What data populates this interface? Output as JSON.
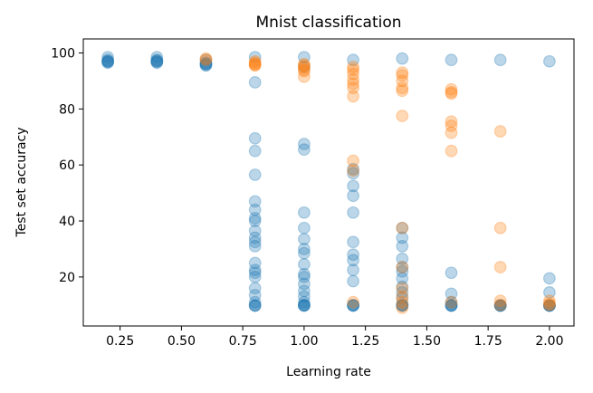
{
  "chart_data": {
    "type": "scatter",
    "title": "Mnist classification",
    "xlabel": "Learning rate",
    "ylabel": "Test set accuracy",
    "xlim": [
      0.1,
      2.1
    ],
    "ylim": [
      2.5,
      105
    ],
    "xticks": [
      0.25,
      0.5,
      0.75,
      1.0,
      1.25,
      1.5,
      1.75,
      2.0
    ],
    "xtick_labels": [
      "0.25",
      "0.50",
      "0.75",
      "1.00",
      "1.25",
      "1.50",
      "1.75",
      "2.00"
    ],
    "yticks": [
      20,
      40,
      60,
      80,
      100
    ],
    "ytick_labels": [
      "20",
      "40",
      "60",
      "80",
      "100"
    ],
    "grid": false,
    "legend": "none",
    "marker_alpha": 0.3,
    "series": [
      {
        "color": "#1f77b4",
        "points": [
          [
            0.2,
            98.5
          ],
          [
            0.2,
            97.5
          ],
          [
            0.2,
            97
          ],
          [
            0.2,
            96.5
          ],
          [
            0.2,
            97
          ],
          [
            0.2,
            96.8
          ],
          [
            0.4,
            98.5
          ],
          [
            0.4,
            97.5
          ],
          [
            0.4,
            97
          ],
          [
            0.4,
            96.5
          ],
          [
            0.4,
            97.2
          ],
          [
            0.4,
            96.8
          ],
          [
            0.6,
            97.5
          ],
          [
            0.6,
            96.5
          ],
          [
            0.6,
            95.5
          ],
          [
            0.6,
            96
          ],
          [
            0.6,
            95.8
          ],
          [
            0.6,
            96.2
          ],
          [
            0.8,
            98.5
          ],
          [
            0.8,
            89.5
          ],
          [
            0.8,
            69.5
          ],
          [
            0.8,
            65
          ],
          [
            0.8,
            56.5
          ],
          [
            0.8,
            47
          ],
          [
            0.8,
            44
          ],
          [
            0.8,
            41
          ],
          [
            0.8,
            40
          ],
          [
            0.8,
            36.5
          ],
          [
            0.8,
            34
          ],
          [
            0.8,
            32.5
          ],
          [
            0.8,
            31
          ],
          [
            0.8,
            25
          ],
          [
            0.8,
            22.5
          ],
          [
            0.8,
            21.5
          ],
          [
            0.8,
            20
          ],
          [
            0.8,
            16
          ],
          [
            0.8,
            13.5
          ],
          [
            0.8,
            11
          ],
          [
            0.8,
            9.8
          ],
          [
            0.8,
            9.8
          ],
          [
            0.8,
            9.8
          ],
          [
            1.0,
            98.5
          ],
          [
            1.0,
            95
          ],
          [
            1.0,
            67.5
          ],
          [
            1.0,
            65.5
          ],
          [
            1.0,
            43
          ],
          [
            1.0,
            37.5
          ],
          [
            1.0,
            33.5
          ],
          [
            1.0,
            30
          ],
          [
            1.0,
            28.5
          ],
          [
            1.0,
            24.5
          ],
          [
            1.0,
            21
          ],
          [
            1.0,
            20
          ],
          [
            1.0,
            17.5
          ],
          [
            1.0,
            15
          ],
          [
            1.0,
            13
          ],
          [
            1.0,
            11
          ],
          [
            1.0,
            10
          ],
          [
            1.0,
            9.8
          ],
          [
            1.0,
            9.8
          ],
          [
            1.0,
            9.8
          ],
          [
            1.2,
            97.5
          ],
          [
            1.2,
            58.5
          ],
          [
            1.2,
            57
          ],
          [
            1.2,
            52.5
          ],
          [
            1.2,
            49
          ],
          [
            1.2,
            43
          ],
          [
            1.2,
            32.5
          ],
          [
            1.2,
            28
          ],
          [
            1.2,
            26
          ],
          [
            1.2,
            22.5
          ],
          [
            1.2,
            18.5
          ],
          [
            1.2,
            10
          ],
          [
            1.2,
            9.8
          ],
          [
            1.2,
            9.8
          ],
          [
            1.2,
            9.8
          ],
          [
            1.4,
            98
          ],
          [
            1.4,
            37.5
          ],
          [
            1.4,
            34
          ],
          [
            1.4,
            31
          ],
          [
            1.4,
            26.5
          ],
          [
            1.4,
            23.5
          ],
          [
            1.4,
            22
          ],
          [
            1.4,
            19.5
          ],
          [
            1.4,
            16.5
          ],
          [
            1.4,
            14.5
          ],
          [
            1.4,
            12.5
          ],
          [
            1.4,
            10
          ],
          [
            1.4,
            9.8
          ],
          [
            1.4,
            9.8
          ],
          [
            1.4,
            9.8
          ],
          [
            1.6,
            97.5
          ],
          [
            1.6,
            21.5
          ],
          [
            1.6,
            14
          ],
          [
            1.6,
            11
          ],
          [
            1.6,
            9.8
          ],
          [
            1.6,
            9.8
          ],
          [
            1.6,
            9.8
          ],
          [
            1.6,
            9.8
          ],
          [
            1.8,
            97.5
          ],
          [
            1.8,
            9.8
          ],
          [
            1.8,
            9.8
          ],
          [
            1.8,
            9.8
          ],
          [
            1.8,
            9.8
          ],
          [
            1.8,
            9.8
          ],
          [
            2.0,
            97
          ],
          [
            2.0,
            19.5
          ],
          [
            2.0,
            14.5
          ],
          [
            2.0,
            9.8
          ],
          [
            2.0,
            9.8
          ],
          [
            2.0,
            9.8
          ],
          [
            2.0,
            9.8
          ],
          [
            2.0,
            9.8
          ]
        ]
      },
      {
        "color": "#ff7f0e",
        "points": [
          [
            0.6,
            98
          ],
          [
            0.6,
            97.5
          ],
          [
            0.8,
            97
          ],
          [
            0.8,
            96
          ],
          [
            0.8,
            95.5
          ],
          [
            0.8,
            96.5
          ],
          [
            0.8,
            95.8
          ],
          [
            1.0,
            96
          ],
          [
            1.0,
            95
          ],
          [
            1.0,
            94
          ],
          [
            1.0,
            93.5
          ],
          [
            1.0,
            91.5
          ],
          [
            1.0,
            95.5
          ],
          [
            1.2,
            95
          ],
          [
            1.2,
            94
          ],
          [
            1.2,
            92.5
          ],
          [
            1.2,
            90.5
          ],
          [
            1.2,
            89
          ],
          [
            1.2,
            87.5
          ],
          [
            1.2,
            84.5
          ],
          [
            1.2,
            61.5
          ],
          [
            1.2,
            58
          ],
          [
            1.2,
            11
          ],
          [
            1.4,
            93
          ],
          [
            1.4,
            92
          ],
          [
            1.4,
            90
          ],
          [
            1.4,
            87.5
          ],
          [
            1.4,
            86.5
          ],
          [
            1.4,
            77.5
          ],
          [
            1.4,
            37.5
          ],
          [
            1.4,
            23.5
          ],
          [
            1.4,
            16
          ],
          [
            1.4,
            13
          ],
          [
            1.4,
            11
          ],
          [
            1.4,
            9
          ],
          [
            1.6,
            87
          ],
          [
            1.6,
            86
          ],
          [
            1.6,
            85.5
          ],
          [
            1.6,
            75.5
          ],
          [
            1.6,
            74
          ],
          [
            1.6,
            71.5
          ],
          [
            1.6,
            65
          ],
          [
            1.6,
            11
          ],
          [
            1.8,
            72
          ],
          [
            1.8,
            37.5
          ],
          [
            1.8,
            23.5
          ],
          [
            1.8,
            11.5
          ],
          [
            1.8,
            10
          ],
          [
            2.0,
            11.5
          ],
          [
            2.0,
            10.5
          ],
          [
            2.0,
            10
          ]
        ]
      }
    ]
  }
}
